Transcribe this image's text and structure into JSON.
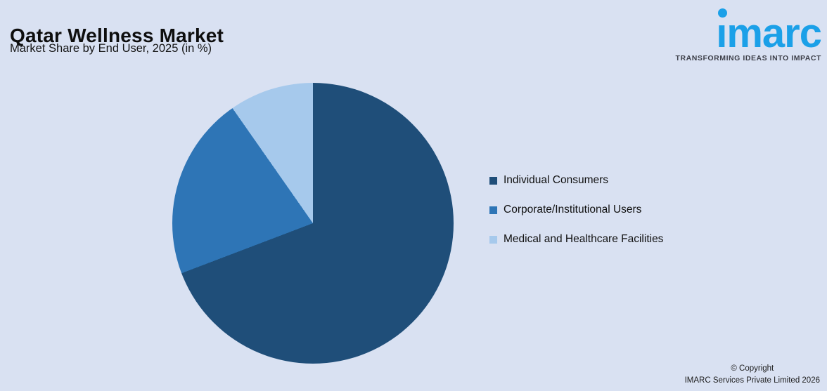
{
  "page": {
    "title": "Qatar Wellness Market",
    "subtitle": "Market Share by End User, 2025 (in %)",
    "background_color": "#d9e1f2"
  },
  "logo": {
    "text": "imarc",
    "tagline": "TRANSFORMING IDEAS INTO IMPACT",
    "color": "#1ba0e8",
    "tagline_color": "#3d3f49"
  },
  "chart_data": {
    "type": "pie",
    "title": "Qatar Wellness Market",
    "subtitle": "Market Share by End User, 2025 (in %)",
    "categories": [
      "Individual Consumers",
      "Corporate/Institutional Users",
      "Medical and Healthcare Facilities"
    ],
    "values": [
      69.2,
      21.1,
      9.7
    ],
    "colors": [
      "#1f4e79",
      "#2e75b6",
      "#a6c9ec"
    ],
    "start_angle_deg": 0,
    "direction": "clockwise",
    "legend_position": "right",
    "data_labels": false
  },
  "footer": {
    "copyright_line1": "© Copyright",
    "copyright_line2": "IMARC Services Private Limited 2026"
  }
}
